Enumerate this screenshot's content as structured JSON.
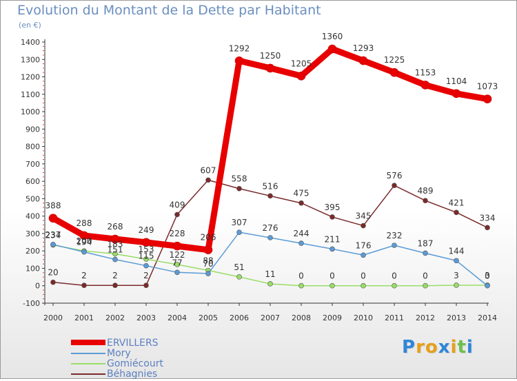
{
  "title": "Evolution du Montant de la Dette par Habitant",
  "subtitle": "(en €)",
  "logo": {
    "text": "Proxiti",
    "colors": [
      "#2e86d8",
      "#e6a019",
      "#e6a019",
      "#2e86d8",
      "#e6a019",
      "#6cc04a",
      "#2e86d8"
    ]
  },
  "chart_data": {
    "type": "line",
    "x": [
      "2000",
      "2001",
      "2002",
      "2003",
      "2004",
      "2005",
      "2006",
      "2007",
      "2008",
      "2009",
      "2010",
      "2011",
      "2012",
      "2013",
      "2014"
    ],
    "ylim": [
      -100,
      1400
    ],
    "yticks": [
      "-100",
      "0",
      "100",
      "200",
      "300",
      "400",
      "500",
      "600",
      "700",
      "800",
      "900",
      "1000",
      "1100",
      "1200",
      "1300",
      "1400"
    ],
    "grid": false,
    "legend_placement": "bottom-left",
    "series": [
      {
        "name": "ERVILLERS",
        "color": "#e80000",
        "labelColor": "#333333",
        "values": [
          388,
          288,
          268,
          249,
          228,
          206,
          1292,
          1250,
          1205,
          1360,
          1293,
          1225,
          1153,
          1104,
          1073
        ],
        "labels": [
          "388",
          "288",
          "268",
          "249",
          "228",
          "206",
          "1292",
          "1250",
          "1205",
          "1360",
          "1293",
          "1225",
          "1153",
          "1104",
          "1073"
        ]
      },
      {
        "name": "Mory",
        "color": "#5b9bd5",
        "labelColor": "#333333",
        "values": [
          237,
          194,
          151,
          115,
          77,
          70,
          307,
          276,
          244,
          211,
          176,
          232,
          187,
          144,
          0
        ],
        "labels": [
          "237",
          "194",
          "151",
          "115",
          "77",
          "70",
          "307",
          "276",
          "244",
          "211",
          "176",
          "232",
          "187",
          "144",
          "0"
        ]
      },
      {
        "name": "Gomiécourt",
        "color": "#99dd66",
        "labelColor": "#333333",
        "values": [
          234,
          200,
          183,
          153,
          122,
          88,
          51,
          11,
          0,
          0,
          0,
          0,
          0,
          3,
          3
        ],
        "labels": [
          "234",
          "200",
          "183",
          "153",
          "122",
          "88",
          "51",
          "11",
          "0",
          "0",
          "0",
          "0",
          "0",
          "3",
          "3"
        ]
      },
      {
        "name": "Béhagnies",
        "color": "#7a2a2a",
        "labelColor": "#333333",
        "values": [
          20,
          2,
          2,
          2,
          409,
          607,
          558,
          516,
          475,
          395,
          345,
          576,
          489,
          421,
          334
        ],
        "labels": [
          "20",
          "2",
          "2",
          "2",
          "409",
          "607",
          "558",
          "516",
          "475",
          "395",
          "345",
          "576",
          "489",
          "421",
          "334"
        ]
      }
    ]
  }
}
